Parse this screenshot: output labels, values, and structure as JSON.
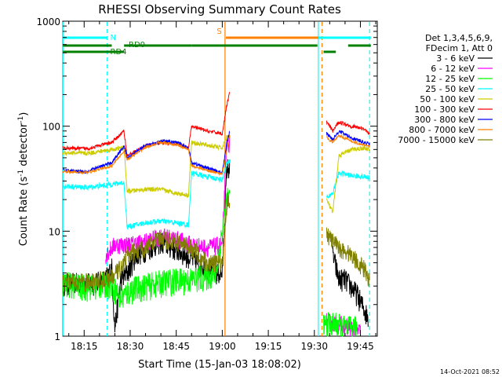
{
  "chart_data": {
    "type": "line",
    "title": "RHESSI Observing Summary Count Rates",
    "xlabel": "Start Time (15-Jan-03 18:08:02)",
    "ylabel_parts": [
      "Count Rate (s",
      "-1",
      " detector",
      "-1",
      ")"
    ],
    "xlim_minutes": [
      8.03,
      110.5
    ],
    "ylim": [
      1,
      1000
    ],
    "yscale": "log",
    "x_ticks": [
      {
        "label": "18:15",
        "minute": 15
      },
      {
        "label": "18:30",
        "minute": 30
      },
      {
        "label": "18:45",
        "minute": 45
      },
      {
        "label": "19:00",
        "minute": 60
      },
      {
        "label": "19:15",
        "minute": 75
      },
      {
        "label": "19:30",
        "minute": 90
      },
      {
        "label": "19:45",
        "minute": 105
      }
    ],
    "y_ticks": [
      {
        "label": "1",
        "value": 1
      },
      {
        "label": "10",
        "value": 10
      },
      {
        "label": "100",
        "value": 100
      },
      {
        "label": "1000",
        "value": 1000
      }
    ],
    "legend": {
      "position": "right",
      "header": [
        "Det 1,3,4,5,6,9,",
        "FDecim 1, Att 0"
      ]
    },
    "series": [
      {
        "name": "3 - 6 keV",
        "color": "#000000",
        "noise": 0.25,
        "points": [
          [
            8.1,
            3.2
          ],
          [
            18,
            3.2
          ],
          [
            22,
            3.5
          ],
          [
            24,
            4.5
          ],
          [
            25,
            1.2
          ],
          [
            27,
            3.5
          ],
          [
            29,
            4
          ],
          [
            32,
            6
          ],
          [
            40,
            8
          ],
          [
            48,
            6
          ],
          [
            52,
            5
          ],
          [
            58,
            4
          ],
          [
            60,
            4
          ],
          [
            61.5,
            40
          ],
          [
            62.5,
            40
          ]
        ],
        "points2": [
          [
            96,
            6
          ],
          [
            98,
            3.5
          ],
          [
            100,
            3.5
          ],
          [
            104,
            2.5
          ],
          [
            107.5,
            1.5
          ]
        ]
      },
      {
        "name": "6 - 12 keV",
        "color": "#ff00ff",
        "noise": 0.2,
        "points": [
          [
            22,
            6
          ],
          [
            25,
            7.5
          ],
          [
            30,
            7.5
          ],
          [
            35,
            8
          ],
          [
            40,
            9
          ],
          [
            45,
            8.5
          ],
          [
            50,
            7.5
          ],
          [
            55,
            7
          ],
          [
            60,
            7.5
          ],
          [
            61.5,
            70
          ],
          [
            62.5,
            70
          ]
        ],
        "points2": [
          [
            94,
            1.4
          ],
          [
            98,
            1.3
          ],
          [
            102,
            1.2
          ],
          [
            105,
            1.1
          ]
        ]
      },
      {
        "name": "12 - 25 keV",
        "color": "#00ff00",
        "noise": 0.3,
        "points": [
          [
            8.1,
            3.2
          ],
          [
            16,
            3
          ],
          [
            24,
            3.2
          ],
          [
            27,
            2.3
          ],
          [
            30,
            2.8
          ],
          [
            38,
            3.2
          ],
          [
            43,
            3.4
          ],
          [
            50,
            3.5
          ],
          [
            58,
            4
          ],
          [
            61.5,
            20
          ],
          [
            62.5,
            20
          ]
        ],
        "points2": [
          [
            93,
            1.3
          ],
          [
            97,
            1.3
          ],
          [
            100,
            1.2
          ],
          [
            104,
            1.2
          ]
        ]
      },
      {
        "name": "25 - 50 keV",
        "color": "#00ffff",
        "noise": 0.06,
        "points": [
          [
            8.1,
            27
          ],
          [
            16,
            26
          ],
          [
            24,
            28
          ],
          [
            28,
            29
          ],
          [
            29,
            11
          ],
          [
            35,
            12
          ],
          [
            40,
            12.5
          ],
          [
            45,
            12
          ],
          [
            49,
            11.5
          ],
          [
            50,
            36
          ],
          [
            55,
            33
          ],
          [
            60,
            31
          ],
          [
            61.5,
            45
          ],
          [
            62.5,
            45
          ]
        ],
        "points2": [
          [
            94,
            21
          ],
          [
            96,
            23
          ],
          [
            98,
            36
          ],
          [
            102,
            34
          ],
          [
            106,
            33
          ],
          [
            108,
            32
          ]
        ]
      },
      {
        "name": "50 - 100 keV",
        "color": "#cccc00",
        "noise": 0.05,
        "points": [
          [
            8.1,
            56
          ],
          [
            16,
            55
          ],
          [
            24,
            60
          ],
          [
            28,
            62
          ],
          [
            29,
            24
          ],
          [
            35,
            25
          ],
          [
            40,
            25
          ],
          [
            45,
            23
          ],
          [
            49,
            22
          ],
          [
            50,
            70
          ],
          [
            55,
            66
          ],
          [
            60,
            62
          ],
          [
            61.5,
            80
          ],
          [
            62.5,
            80
          ]
        ],
        "points2": [
          [
            94,
            20
          ],
          [
            96,
            15
          ],
          [
            98,
            52
          ],
          [
            102,
            60
          ],
          [
            106,
            62
          ],
          [
            108,
            60
          ]
        ]
      },
      {
        "name": "100 - 300 keV",
        "color": "#ff0000",
        "noise": 0.04,
        "points": [
          [
            8.1,
            62
          ],
          [
            16,
            61
          ],
          [
            24,
            70
          ],
          [
            28,
            90
          ],
          [
            29,
            52
          ],
          [
            35,
            65
          ],
          [
            40,
            70
          ],
          [
            45,
            68
          ],
          [
            49,
            62
          ],
          [
            50,
            100
          ],
          [
            55,
            90
          ],
          [
            60,
            85
          ],
          [
            61.5,
            160
          ],
          [
            62.5,
            215
          ]
        ],
        "points2": [
          [
            94,
            110
          ],
          [
            96,
            90
          ],
          [
            98,
            110
          ],
          [
            102,
            100
          ],
          [
            106,
            95
          ],
          [
            108,
            85
          ]
        ]
      },
      {
        "name": "300 - 800 keV",
        "color": "#0000ff",
        "noise": 0.04,
        "points": [
          [
            8.1,
            38
          ],
          [
            16,
            37
          ],
          [
            24,
            45
          ],
          [
            28,
            65
          ],
          [
            29,
            50
          ],
          [
            35,
            65
          ],
          [
            40,
            72
          ],
          [
            45,
            70
          ],
          [
            49,
            62
          ],
          [
            50,
            45
          ],
          [
            55,
            40
          ],
          [
            60,
            36
          ],
          [
            61.5,
            70
          ],
          [
            62.5,
            90
          ]
        ],
        "points2": [
          [
            94,
            85
          ],
          [
            96,
            75
          ],
          [
            98,
            90
          ],
          [
            102,
            78
          ],
          [
            106,
            70
          ],
          [
            108,
            68
          ]
        ]
      },
      {
        "name": "800 - 7000 keV",
        "color": "#ff8000",
        "noise": 0.03,
        "points": [
          [
            8.1,
            37
          ],
          [
            16,
            36
          ],
          [
            24,
            42
          ],
          [
            28,
            58
          ],
          [
            29,
            48
          ],
          [
            35,
            63
          ],
          [
            40,
            70
          ],
          [
            45,
            67
          ],
          [
            49,
            60
          ],
          [
            50,
            42
          ],
          [
            55,
            38
          ],
          [
            60,
            35
          ],
          [
            61.5,
            60
          ],
          [
            62.5,
            85
          ]
        ],
        "points2": [
          [
            94,
            78
          ],
          [
            96,
            70
          ],
          [
            98,
            82
          ],
          [
            102,
            72
          ],
          [
            106,
            66
          ],
          [
            108,
            64
          ]
        ]
      },
      {
        "name": "7000 - 15000 keV",
        "color": "#808000",
        "noise": 0.2,
        "points": [
          [
            8.1,
            3.3
          ],
          [
            16,
            3.3
          ],
          [
            24,
            3.6
          ],
          [
            28,
            5
          ],
          [
            29,
            6
          ],
          [
            35,
            7
          ],
          [
            40,
            8.5
          ],
          [
            45,
            8
          ],
          [
            50,
            7
          ],
          [
            55,
            5
          ],
          [
            60,
            5
          ],
          [
            61.5,
            20
          ],
          [
            62.5,
            20
          ]
        ],
        "points2": [
          [
            94,
            9.5
          ],
          [
            96,
            8
          ],
          [
            98,
            7
          ],
          [
            102,
            6
          ],
          [
            106,
            4.5
          ],
          [
            108,
            3.5
          ]
        ]
      }
    ],
    "annotations": {
      "vlines": [
        {
          "minute": 8.1,
          "color": "#00ffff",
          "style": "solid"
        },
        {
          "minute": 22.5,
          "color": "#00ffff",
          "style": "dashed"
        },
        {
          "minute": 60.9,
          "color": "#ff8000",
          "style": "solid"
        },
        {
          "minute": 91.3,
          "color": "#00ffff",
          "style": "solid"
        },
        {
          "minute": 92.5,
          "color": "#ff8000",
          "style": "dashed"
        },
        {
          "minute": 108.0,
          "color": "#00ffff",
          "style": "dashed"
        }
      ],
      "flag_bars": [
        {
          "label": "N",
          "color": "#00ffff",
          "row": 0,
          "segments": [
            [
              8.1,
              22.5
            ],
            [
              91.3,
              108.4
            ]
          ]
        },
        {
          "label": "S",
          "color": "#ff8000",
          "row": 0,
          "segments": [
            [
              61.2,
              91.3
            ]
          ]
        },
        {
          "label": "RD0",
          "color": "#008000",
          "row": 1,
          "segments": [
            [
              8.1,
              24
            ],
            [
              28,
              50
            ],
            [
              50,
              91
            ],
            [
              101,
              108.4
            ]
          ]
        },
        {
          "label": "RD4",
          "color": "#008000",
          "row": 2,
          "segments": [
            [
              8.1,
              28
            ],
            [
              93,
              97
            ]
          ]
        }
      ]
    },
    "timestamp": "14-Oct-2021 08:52"
  }
}
